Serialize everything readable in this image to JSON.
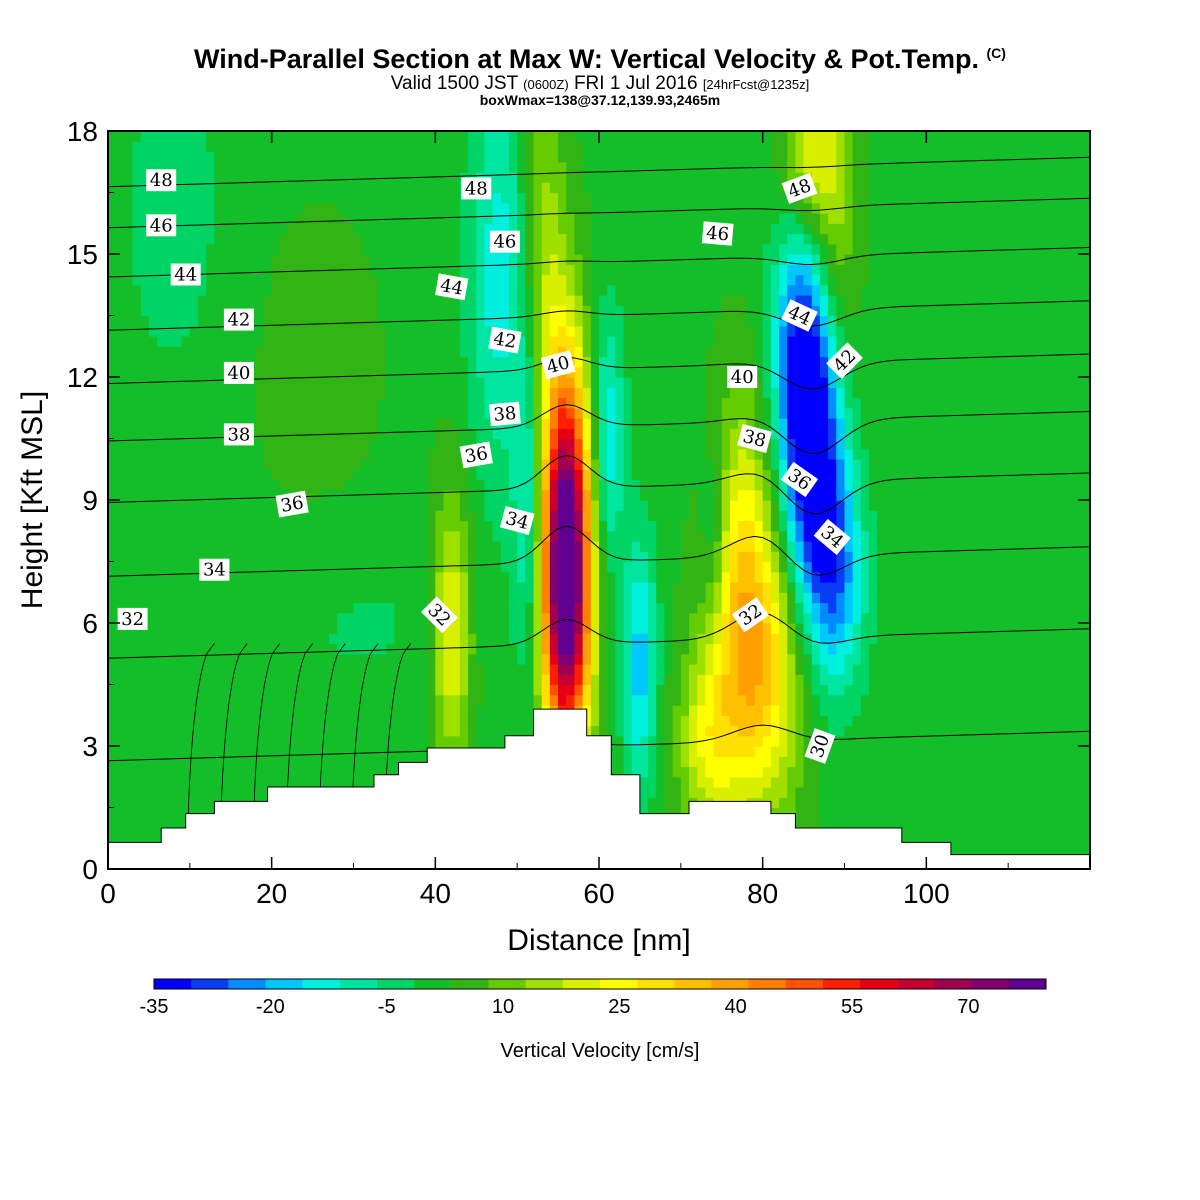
{
  "title": {
    "main": "Wind-Parallel Section at Max W: Vertical Velocity & Pot.Temp.",
    "copyright": "(C)",
    "valid_prefix": "Valid 1500 JST",
    "valid_z": "(0600Z)",
    "valid_date": "FRI 1 Jul 2016",
    "forecast": "[24hrFcst@1235z]",
    "box": "boxWmax=138@37.12,139.93,2465m"
  },
  "chart_data": {
    "type": "heatmap",
    "xlabel": "Distance [nm]",
    "ylabel": "Height [Kft MSL]",
    "xlim": [
      0,
      120
    ],
    "ylim": [
      0,
      18
    ],
    "x_ticks": [
      0,
      20,
      40,
      60,
      80,
      100
    ],
    "y_ticks": [
      0,
      3,
      6,
      9,
      12,
      15,
      18
    ],
    "colorbar": {
      "label": "Vertical Velocity [cm/s]",
      "tick_values": [
        -35,
        -20,
        -5,
        10,
        25,
        40,
        55,
        70
      ],
      "tick_labels": [
        "-35",
        "-20",
        "-5",
        "10",
        "25",
        "40",
        "55",
        "70"
      ],
      "range": [
        -35,
        80
      ],
      "colors": [
        "#0000ff",
        "#0a3cf5",
        "#008cff",
        "#00c8ff",
        "#00f0e0",
        "#00e6a0",
        "#00d464",
        "#14be28",
        "#32b414",
        "#64cc00",
        "#a0e000",
        "#d8f000",
        "#ffff00",
        "#ffe000",
        "#ffc000",
        "#ffa000",
        "#ff8000",
        "#ff5000",
        "#ff1e00",
        "#e60014",
        "#c80032",
        "#a00050",
        "#800070",
        "#600090"
      ]
    },
    "terrain_profile": [
      [
        0,
        0.65
      ],
      [
        6.5,
        0.65
      ],
      [
        6.5,
        1.0
      ],
      [
        9.5,
        1.0
      ],
      [
        9.5,
        1.35
      ],
      [
        13,
        1.35
      ],
      [
        13,
        1.65
      ],
      [
        19.5,
        1.65
      ],
      [
        19.5,
        2.0
      ],
      [
        32.5,
        2.0
      ],
      [
        32.5,
        2.3
      ],
      [
        35.5,
        2.3
      ],
      [
        35.5,
        2.6
      ],
      [
        39,
        2.6
      ],
      [
        39,
        2.95
      ],
      [
        48.5,
        2.95
      ],
      [
        48.5,
        3.25
      ],
      [
        52,
        3.25
      ],
      [
        52,
        3.9
      ],
      [
        58.5,
        3.9
      ],
      [
        58.5,
        3.25
      ],
      [
        61.5,
        3.25
      ],
      [
        61.5,
        2.3
      ],
      [
        65,
        2.3
      ],
      [
        65,
        1.35
      ],
      [
        71,
        1.35
      ],
      [
        71,
        1.65
      ],
      [
        81,
        1.65
      ],
      [
        81,
        1.35
      ],
      [
        84,
        1.35
      ],
      [
        84,
        1.0
      ],
      [
        97,
        1.0
      ],
      [
        97,
        0.65
      ],
      [
        103,
        0.65
      ],
      [
        103,
        0.35
      ],
      [
        120,
        0.35
      ]
    ],
    "wv_features": [
      {
        "x": 56,
        "y": 7.6,
        "sx": 2.1,
        "sy": 3.3,
        "value": 85
      },
      {
        "x": 55.8,
        "y": 5.8,
        "sx": 2.0,
        "sy": 2.0,
        "value": 10
      },
      {
        "x": 79,
        "y": 4.8,
        "sx": 4.0,
        "sy": 2.5,
        "value": 32
      },
      {
        "x": 77.5,
        "y": 8.5,
        "sx": 2.6,
        "sy": 2.6,
        "value": 16
      },
      {
        "x": 42,
        "y": 5.8,
        "sx": 1.8,
        "sy": 2.4,
        "value": 22
      },
      {
        "x": 48,
        "y": 14.5,
        "sx": 2.8,
        "sy": 3.5,
        "value": -16
      },
      {
        "x": 51.5,
        "y": 9.0,
        "sx": 1.3,
        "sy": 3.0,
        "value": -16
      },
      {
        "x": 61,
        "y": 10.5,
        "sx": 1.5,
        "sy": 2.2,
        "value": -18
      },
      {
        "x": 65,
        "y": 5.0,
        "sx": 1.5,
        "sy": 2.2,
        "value": -20
      },
      {
        "x": 74,
        "y": 8.0,
        "sx": 1.2,
        "sy": 1.6,
        "value": -10
      },
      {
        "x": 86,
        "y": 10.0,
        "sx": 2.6,
        "sy": 2.6,
        "value": -38
      },
      {
        "x": 84.5,
        "y": 13.0,
        "sx": 2.5,
        "sy": 2.2,
        "value": -22
      },
      {
        "x": 89,
        "y": 7.0,
        "sx": 2.5,
        "sy": 2.0,
        "value": -22
      },
      {
        "x": 89,
        "y": 15.5,
        "sx": 2.0,
        "sy": 2.5,
        "value": 10
      },
      {
        "x": 86,
        "y": 17.5,
        "sx": 2.5,
        "sy": 1.5,
        "value": 20
      },
      {
        "x": 53,
        "y": 15.0,
        "sx": 2.0,
        "sy": 3.0,
        "value": 15
      },
      {
        "x": 73,
        "y": 3.0,
        "sx": 2.5,
        "sy": 1.5,
        "value": 15
      },
      {
        "x": 25,
        "y": 12.0,
        "sx": 6.0,
        "sy": 3.0,
        "value": 4
      },
      {
        "x": 8,
        "y": 16.0,
        "sx": 6.0,
        "sy": 4.0,
        "value": -5
      },
      {
        "x": 30,
        "y": 6.0,
        "sx": 12.0,
        "sy": 2.0,
        "value": -4
      }
    ],
    "theta_contours": [
      {
        "label": "30",
        "base": 3.0
      },
      {
        "label": "32",
        "base": 5.5
      },
      {
        "label": "34",
        "base": 7.5
      },
      {
        "label": "36",
        "base": 9.3
      },
      {
        "label": "38",
        "base": 10.8
      },
      {
        "label": "40",
        "base": 12.2
      },
      {
        "label": "42",
        "base": 13.5
      },
      {
        "label": "44",
        "base": 14.8
      },
      {
        "label": "46",
        "base": 16.0
      },
      {
        "label": "48",
        "base": 17.0
      }
    ],
    "contour_labels": [
      {
        "text": "48",
        "x": 6.5,
        "y": 16.8,
        "angle": 0
      },
      {
        "text": "46",
        "x": 6.5,
        "y": 15.7,
        "angle": 0
      },
      {
        "text": "44",
        "x": 9.5,
        "y": 14.5,
        "angle": 0
      },
      {
        "text": "42",
        "x": 16,
        "y": 13.4,
        "angle": 0
      },
      {
        "text": "40",
        "x": 16,
        "y": 12.1,
        "angle": 0
      },
      {
        "text": "38",
        "x": 16,
        "y": 10.6,
        "angle": 0
      },
      {
        "text": "36",
        "x": 22.5,
        "y": 8.9,
        "angle": -10
      },
      {
        "text": "34",
        "x": 13,
        "y": 7.3,
        "angle": 0
      },
      {
        "text": "32",
        "x": 3,
        "y": 6.1,
        "angle": 0
      },
      {
        "text": "48",
        "x": 45,
        "y": 16.6,
        "angle": 0
      },
      {
        "text": "46",
        "x": 48.5,
        "y": 15.3,
        "angle": 0
      },
      {
        "text": "44",
        "x": 42,
        "y": 14.2,
        "angle": 10
      },
      {
        "text": "42",
        "x": 48.5,
        "y": 12.9,
        "angle": 10
      },
      {
        "text": "40",
        "x": 55,
        "y": 12.3,
        "angle": -15
      },
      {
        "text": "38",
        "x": 48.5,
        "y": 11.1,
        "angle": -5
      },
      {
        "text": "36",
        "x": 45,
        "y": 10.1,
        "angle": -10
      },
      {
        "text": "34",
        "x": 50,
        "y": 8.5,
        "angle": 15
      },
      {
        "text": "32",
        "x": 40.5,
        "y": 6.2,
        "angle": 45
      },
      {
        "text": "46",
        "x": 74.5,
        "y": 15.5,
        "angle": 5
      },
      {
        "text": "40",
        "x": 77.5,
        "y": 12.0,
        "angle": 0
      },
      {
        "text": "38",
        "x": 79,
        "y": 10.5,
        "angle": 15
      },
      {
        "text": "32",
        "x": 78.5,
        "y": 6.2,
        "angle": -35
      },
      {
        "text": "48",
        "x": 84.5,
        "y": 16.6,
        "angle": -20
      },
      {
        "text": "44",
        "x": 84.5,
        "y": 13.5,
        "angle": 25
      },
      {
        "text": "42",
        "x": 90,
        "y": 12.4,
        "angle": -45
      },
      {
        "text": "36",
        "x": 84.5,
        "y": 9.5,
        "angle": 35
      },
      {
        "text": "34",
        "x": 88.5,
        "y": 8.1,
        "angle": 40
      },
      {
        "text": "30",
        "x": 87,
        "y": 3.0,
        "angle": -70
      }
    ]
  }
}
